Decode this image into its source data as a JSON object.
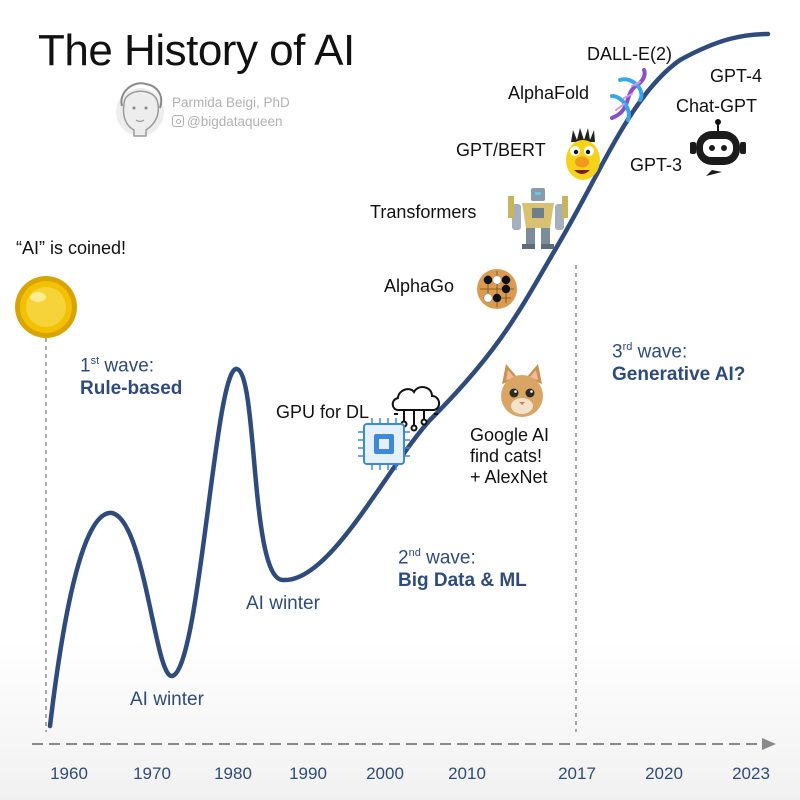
{
  "title": "The History of AI",
  "author": {
    "name": "Parmida Beigi, PhD",
    "handle": "@bigdataqueen"
  },
  "waves": [
    {
      "num": "1",
      "suffix": "st",
      "word": "wave:",
      "name": "Rule-based"
    },
    {
      "num": "2",
      "suffix": "nd",
      "word": "wave:",
      "name": "Big Data & ML"
    },
    {
      "num": "3",
      "suffix": "rd",
      "word": "wave:",
      "name": "Generative AI?"
    }
  ],
  "winters": [
    "AI winter",
    "AI winter"
  ],
  "milestones": {
    "coined": "“AI” is coined!",
    "gpu": "GPU for DL",
    "cats_line1": "Google AI",
    "cats_line2": "find cats!",
    "cats_line3": "+ AlexNet",
    "alphago": "AlphaGo",
    "transformers": "Transformers",
    "gpt_bert": "GPT/BERT",
    "alphafold": "AlphaFold",
    "dalle": "DALL-E(2)",
    "gpt3": "GPT-3",
    "gpt4": "GPT-4",
    "chatgpt": "Chat-GPT"
  },
  "timeline": {
    "years": [
      "1960",
      "1970",
      "1980",
      "1990",
      "2000",
      "2010",
      "2017",
      "2020",
      "2023"
    ]
  },
  "colors": {
    "curve": "#2f4b7c",
    "text": "#111111",
    "axis": "#8a8a8a",
    "coin": "#f2c200"
  },
  "icons": [
    "avatar-sketch",
    "instagram-icon",
    "coin-icon",
    "cloud-network-icon",
    "chip-icon",
    "cat-face-icon",
    "go-board-icon",
    "robot-icon",
    "bert-muppet-icon",
    "dna-icon",
    "chatbot-icon"
  ]
}
